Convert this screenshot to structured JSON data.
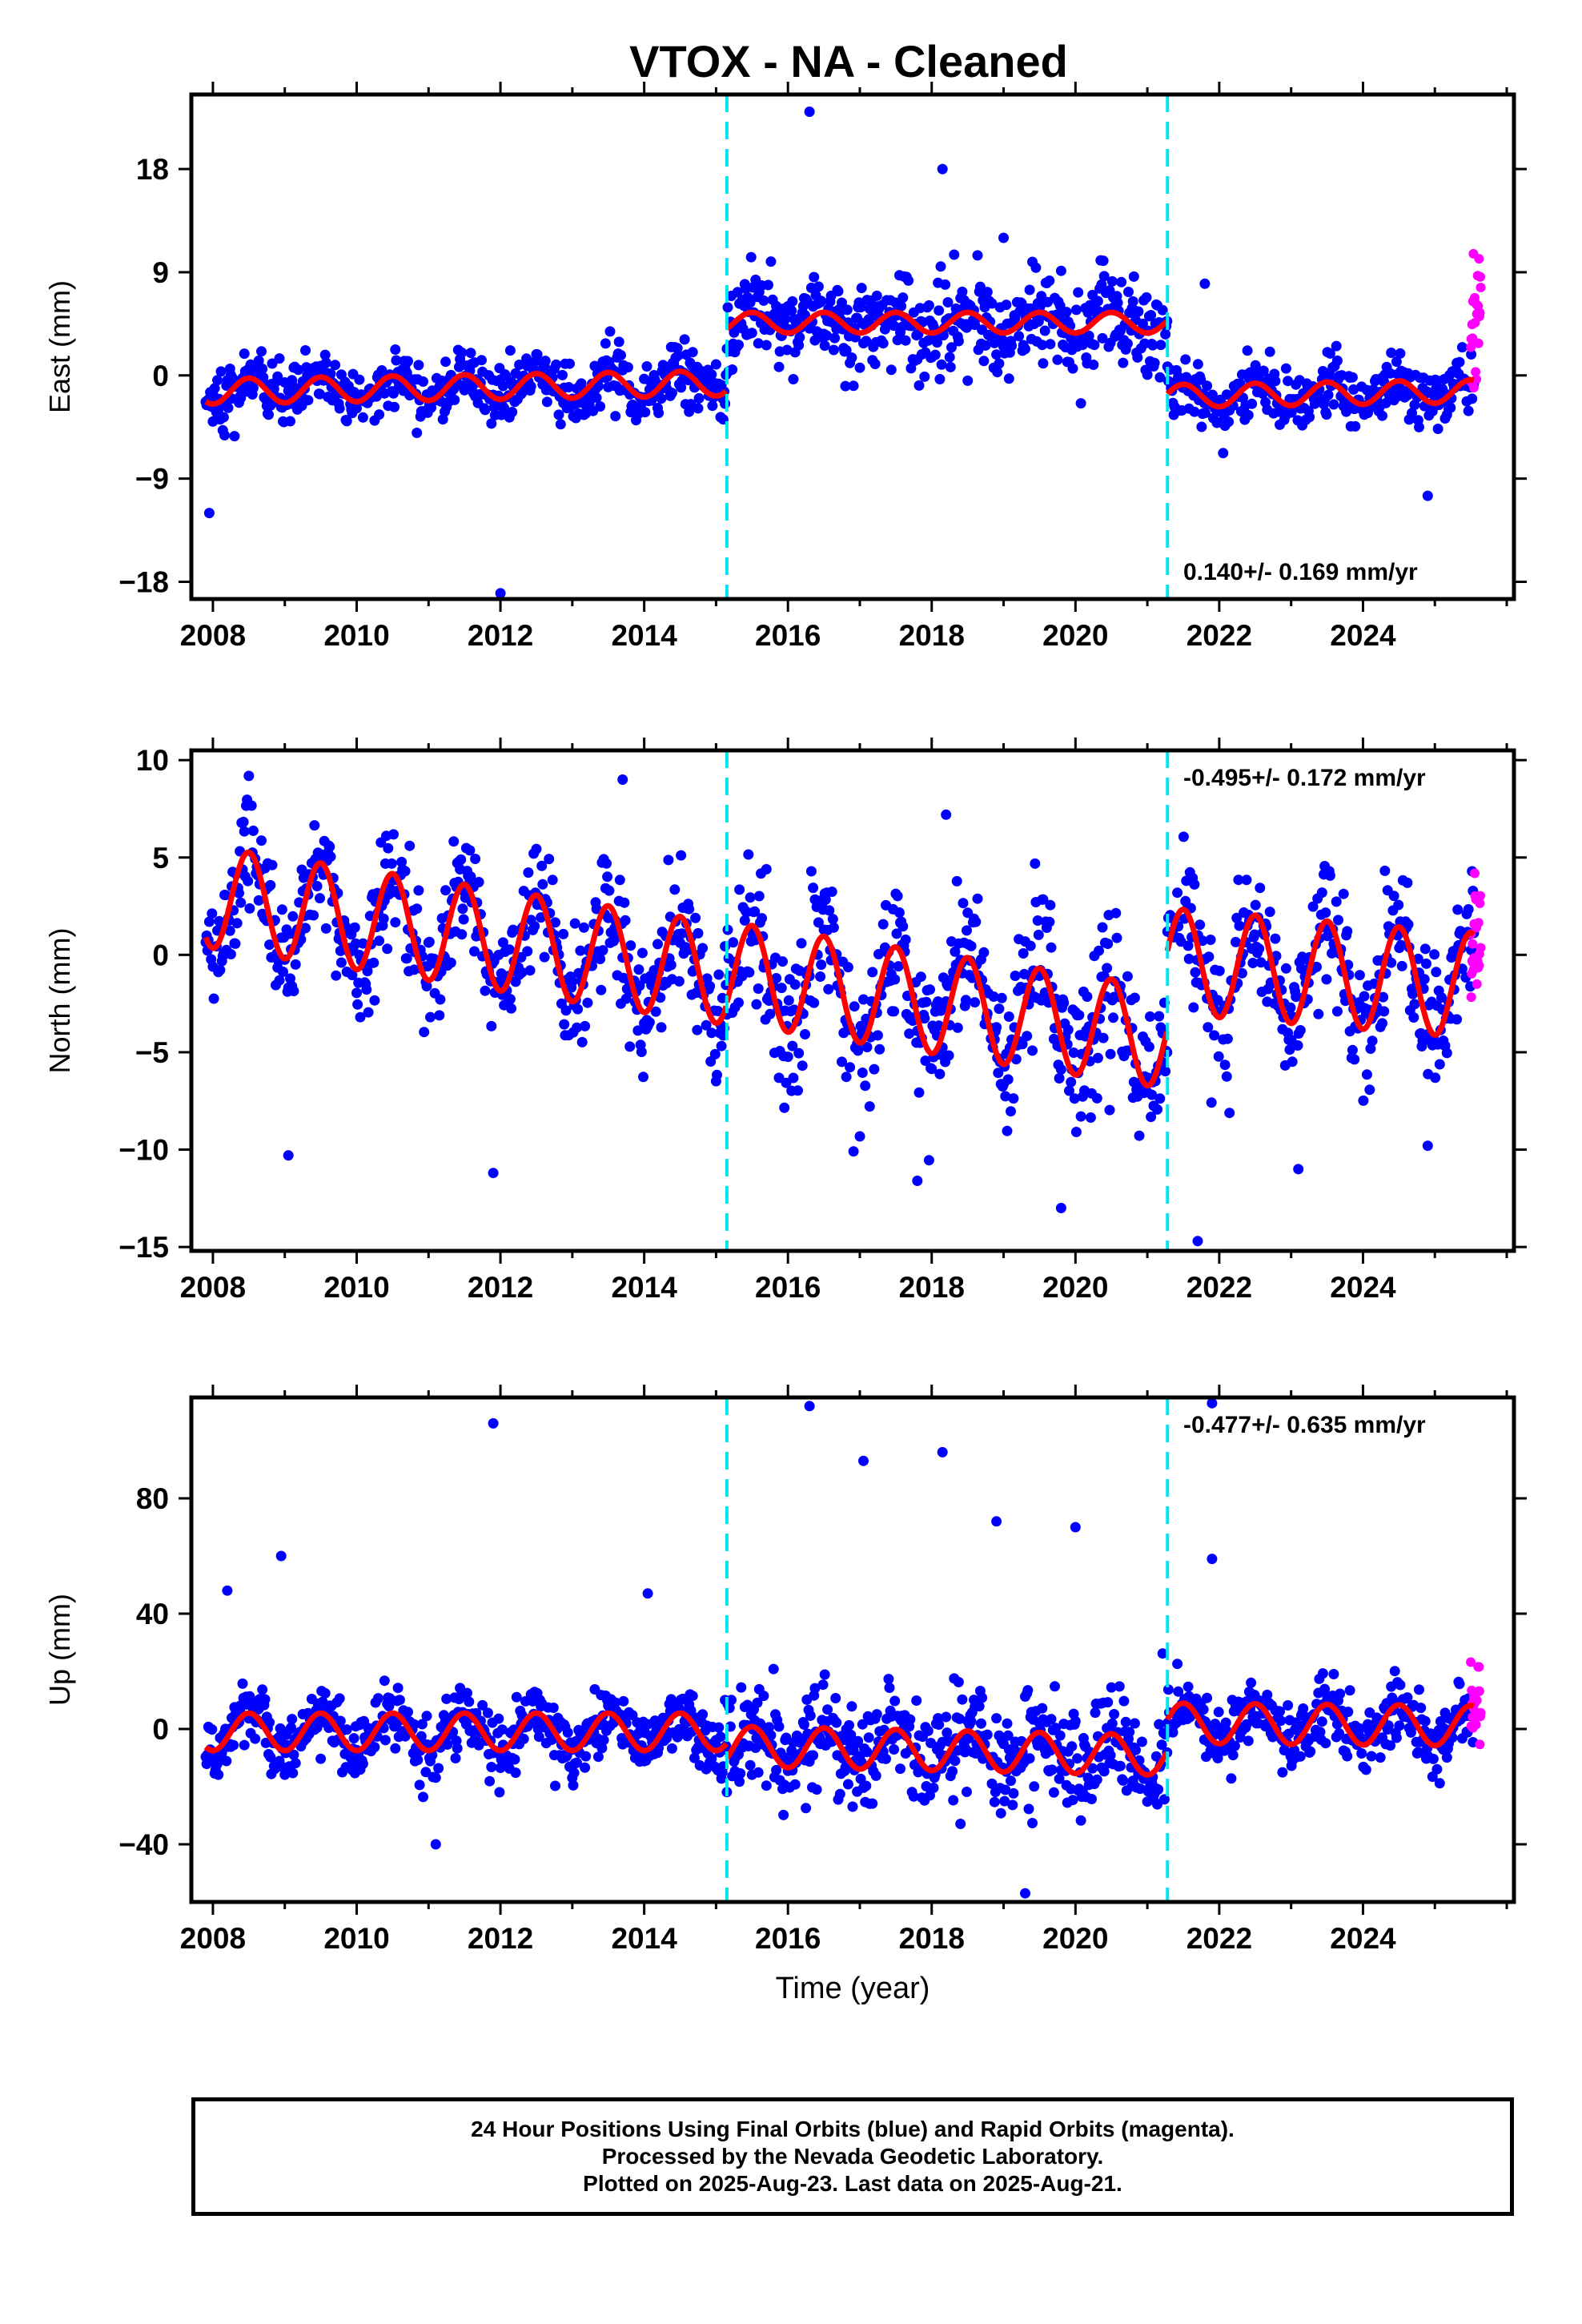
{
  "title": "VTOX  - NA - Cleaned",
  "colors": {
    "final_orbits": "#0000ff",
    "rapid_orbits": "#ff00ff",
    "model_fit": "#ff0000",
    "offset_lines": "#00e5ee",
    "axes": "#000000"
  },
  "chart_data": [
    {
      "type": "scatter",
      "component": "East",
      "ylabel": "East (mm)",
      "xlabel": "",
      "xlim": [
        2007.7,
        2026.1
      ],
      "ylim": [
        -19.5,
        24.5
      ],
      "xticks": [
        2008,
        2010,
        2012,
        2014,
        2016,
        2018,
        2020,
        2022,
        2024
      ],
      "xtick_labels": [
        "2008",
        "2010",
        "2012",
        "2014",
        "2016",
        "2018",
        "2020",
        "2022",
        "2024"
      ],
      "yticks": [
        -18,
        -9,
        0,
        9,
        18
      ],
      "ytick_labels": [
        "−18",
        "−9",
        "0",
        "9",
        "18"
      ],
      "velocity_label": "0.140+/- 0.169 mm/yr",
      "velocity_position": "bottom-right",
      "offset_epochs": [
        2015.15,
        2021.28
      ],
      "segments": [
        {
          "x_start": 2007.9,
          "x_end": 2015.15,
          "level": -1.4,
          "trend": 0.1,
          "amplitude": 1.1,
          "noise": 1.3
        },
        {
          "x_start": 2015.15,
          "x_end": 2021.28,
          "level": 4.6,
          "trend": 0.0,
          "amplitude": 0.9,
          "noise": 2.0
        },
        {
          "x_start": 2021.28,
          "x_end": 2025.55,
          "level": -1.8,
          "trend": 0.1,
          "amplitude": 1.0,
          "noise": 1.3
        }
      ],
      "rapid": {
        "x_start": 2025.5,
        "x_end": 2025.64,
        "level": 4.0,
        "noise": 2.5
      },
      "outliers": [
        [
          2007.95,
          -12.0
        ],
        [
          2012.0,
          -19.0
        ],
        [
          2016.3,
          23.0
        ],
        [
          2018.15,
          18.0
        ],
        [
          2019.0,
          12.0
        ],
        [
          2021.8,
          8.0
        ],
        [
          2024.9,
          -10.5
        ]
      ]
    },
    {
      "type": "scatter",
      "component": "North",
      "ylabel": "North (mm)",
      "xlabel": "",
      "xlim": [
        2007.7,
        2026.1
      ],
      "ylim": [
        -15.2,
        10.5
      ],
      "xticks": [
        2008,
        2010,
        2012,
        2014,
        2016,
        2018,
        2020,
        2022,
        2024
      ],
      "xtick_labels": [
        "2008",
        "2010",
        "2012",
        "2014",
        "2016",
        "2018",
        "2020",
        "2022",
        "2024"
      ],
      "yticks": [
        -15,
        -10,
        -5,
        0,
        5,
        10
      ],
      "ytick_labels": [
        "−15",
        "−10",
        "−5",
        "0",
        "5",
        "10"
      ],
      "velocity_label": "-0.495+/- 0.172 mm/yr",
      "velocity_position": "top-right",
      "offset_epochs": [
        2015.15,
        2021.28
      ],
      "segments": [
        {
          "x_start": 2007.9,
          "x_end": 2015.15,
          "level": 3.0,
          "trend": -0.55,
          "amplitude": 2.6,
          "noise": 1.6
        },
        {
          "x_start": 2015.15,
          "x_end": 2021.28,
          "level": -0.9,
          "trend": -0.55,
          "amplitude": 2.6,
          "noise": 1.9
        },
        {
          "x_start": 2021.28,
          "x_end": 2025.55,
          "level": -0.3,
          "trend": -0.3,
          "amplitude": 2.7,
          "noise": 1.7
        }
      ],
      "rapid": {
        "x_start": 2025.5,
        "x_end": 2025.64,
        "level": 0.5,
        "noise": 2.2
      },
      "outliers": [
        [
          2009.05,
          -10.3
        ],
        [
          2011.9,
          -11.2
        ],
        [
          2013.7,
          9.0
        ],
        [
          2017.8,
          -11.6
        ],
        [
          2018.2,
          7.2
        ],
        [
          2019.8,
          -13.0
        ],
        [
          2021.7,
          -14.7
        ],
        [
          2023.1,
          -11.0
        ],
        [
          2024.9,
          -9.8
        ]
      ]
    },
    {
      "type": "scatter",
      "component": "Up",
      "ylabel": "Up (mm)",
      "xlabel": "Time (year)",
      "xlim": [
        2007.7,
        2026.1
      ],
      "ylim": [
        -60,
        115
      ],
      "xticks": [
        2008,
        2010,
        2012,
        2014,
        2016,
        2018,
        2020,
        2022,
        2024
      ],
      "xtick_labels": [
        "2008",
        "2010",
        "2012",
        "2014",
        "2016",
        "2018",
        "2020",
        "2022",
        "2024"
      ],
      "yticks": [
        -40,
        0,
        40,
        80
      ],
      "ytick_labels": [
        "−40",
        "0",
        "40",
        "80"
      ],
      "velocity_label": "-0.477+/- 0.635 mm/yr",
      "velocity_position": "top-right",
      "offset_epochs": [
        2015.15,
        2021.28
      ],
      "segments": [
        {
          "x_start": 2007.9,
          "x_end": 2015.15,
          "level": -1.0,
          "trend": 0.0,
          "amplitude": 6.5,
          "noise": 5.5
        },
        {
          "x_start": 2015.15,
          "x_end": 2021.28,
          "level": -6.0,
          "trend": -0.5,
          "amplitude": 7.0,
          "noise": 9.0
        },
        {
          "x_start": 2021.28,
          "x_end": 2025.55,
          "level": 2.0,
          "trend": -0.2,
          "amplitude": 7.0,
          "noise": 5.5
        }
      ],
      "rapid": {
        "x_start": 2025.5,
        "x_end": 2025.64,
        "level": 8.0,
        "noise": 6.0
      },
      "outliers": [
        [
          2011.9,
          106.0
        ],
        [
          2016.3,
          112.0
        ],
        [
          2017.05,
          93.0
        ],
        [
          2018.15,
          96.0
        ],
        [
          2021.9,
          113.0
        ],
        [
          2008.2,
          48.0
        ],
        [
          2008.95,
          60.0
        ],
        [
          2014.05,
          47.0
        ],
        [
          2018.9,
          72.0
        ],
        [
          2020.0,
          70.0
        ],
        [
          2021.9,
          59.0
        ],
        [
          2019.3,
          -57.0
        ],
        [
          2011.1,
          -40.0
        ]
      ]
    }
  ],
  "caption": {
    "line1": "24 Hour Positions Using Final Orbits (blue) and Rapid Orbits (magenta).",
    "line2": "Processed by the Nevada Geodetic Laboratory.",
    "line3": "Plotted on 2025-Aug-23. Last data on 2025-Aug-21."
  }
}
